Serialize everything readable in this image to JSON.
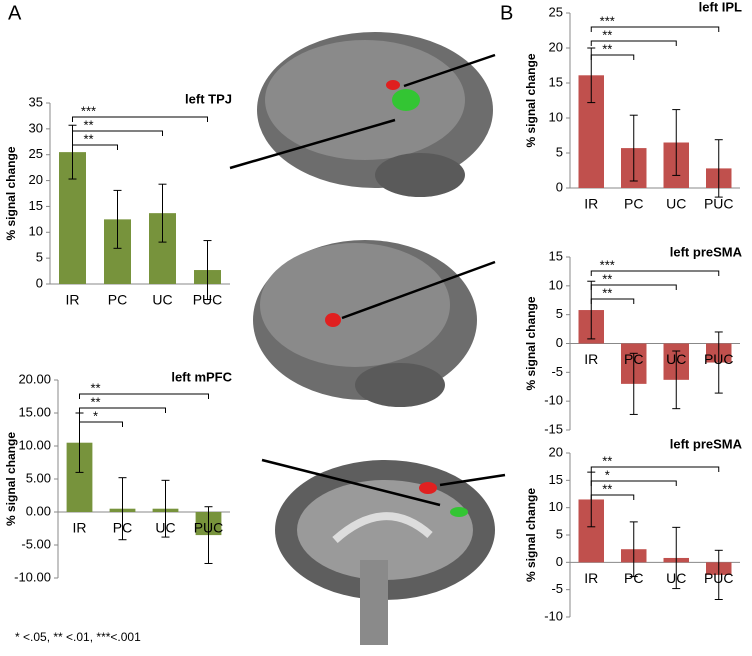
{
  "panel_labels": [
    "A",
    "B"
  ],
  "footnote": "* <.05, ** <.01, ***<.001",
  "chart_data": [
    {
      "type": "bar",
      "title": "left TPJ",
      "y_label": "% signal change",
      "color": "#77933c",
      "categories": [
        "IR",
        "PC",
        "UC",
        "PUC"
      ],
      "values": [
        25.5,
        12.5,
        13.7,
        2.7
      ],
      "errors": [
        5.2,
        5.6,
        5.6,
        5.7
      ],
      "ylim": [
        0,
        35
      ],
      "yticks": [
        0,
        5,
        10,
        15,
        20,
        25,
        30,
        35
      ],
      "significance": [
        {
          "label": "**",
          "categories": [
            "IR",
            "PC"
          ]
        },
        {
          "label": "**",
          "categories": [
            "IR",
            "UC"
          ]
        },
        {
          "label": "***",
          "categories": [
            "IR",
            "PUC"
          ]
        }
      ]
    },
    {
      "type": "bar",
      "title": "left mPFC",
      "y_label": "% signal change",
      "color": "#77933c",
      "categories": [
        "IR",
        "PC",
        "UC",
        "PUC"
      ],
      "values": [
        10.5,
        0.5,
        0.5,
        -3.5
      ],
      "errors": [
        4.5,
        4.7,
        4.3,
        4.3
      ],
      "ylim": [
        -10,
        20
      ],
      "yticks": [
        {
          "value": -10,
          "label": "-10.00"
        },
        {
          "value": -5,
          "label": "-5.00"
        },
        {
          "value": 0,
          "label": "0.00"
        },
        {
          "value": 5,
          "label": "5.00"
        },
        {
          "value": 10,
          "label": "10.00"
        },
        {
          "value": 15,
          "label": "15.00"
        },
        {
          "value": 20,
          "label": "20.00"
        }
      ],
      "significance": [
        {
          "label": "*",
          "categories": [
            "IR",
            "PC"
          ]
        },
        {
          "label": "**",
          "categories": [
            "IR",
            "UC"
          ]
        },
        {
          "label": "**",
          "categories": [
            "IR",
            "PUC"
          ]
        }
      ]
    },
    {
      "type": "bar",
      "title": "left IPL",
      "y_label": "% signal change",
      "color": "#c0504d",
      "categories": [
        "IR",
        "PC",
        "UC",
        "PUC"
      ],
      "values": [
        16.1,
        5.7,
        6.5,
        2.8
      ],
      "errors": [
        3.9,
        4.7,
        4.7,
        4.1
      ],
      "ylim": [
        0,
        25
      ],
      "yticks": [
        0,
        5,
        10,
        15,
        20,
        25
      ],
      "significance": [
        {
          "label": "**",
          "categories": [
            "IR",
            "PC"
          ]
        },
        {
          "label": "**",
          "categories": [
            "IR",
            "UC"
          ]
        },
        {
          "label": "***",
          "categories": [
            "IR",
            "PUC"
          ]
        }
      ]
    },
    {
      "type": "bar",
      "title": "left preSMA",
      "y_label": "% signal change",
      "color": "#c0504d",
      "categories": [
        "IR",
        "PC",
        "UC",
        "PUC"
      ],
      "values": [
        5.8,
        -7,
        -6.3,
        -3.3
      ],
      "errors": [
        5,
        5.3,
        5,
        5.3
      ],
      "ylim": [
        -15,
        15
      ],
      "yticks": [
        -15,
        -10,
        -5,
        0,
        5,
        10,
        15
      ],
      "significance": [
        {
          "label": "**",
          "categories": [
            "IR",
            "PC"
          ]
        },
        {
          "label": "**",
          "categories": [
            "IR",
            "UC"
          ]
        },
        {
          "label": "***",
          "categories": [
            "IR",
            "PUC"
          ]
        }
      ]
    },
    {
      "type": "bar",
      "title": "left preSMA",
      "y_label": "% signal change",
      "color": "#c0504d",
      "categories": [
        "IR",
        "PC",
        "UC",
        "PUC"
      ],
      "values": [
        11.5,
        2.4,
        0.8,
        -2.3
      ],
      "errors": [
        5,
        5,
        5.6,
        4.5
      ],
      "ylim": [
        -10,
        20
      ],
      "yticks": [
        -10,
        -5,
        0,
        5,
        10,
        15,
        20
      ],
      "significance": [
        {
          "label": "**",
          "categories": [
            "IR",
            "PC"
          ]
        },
        {
          "label": "*",
          "categories": [
            "IR",
            "UC"
          ]
        },
        {
          "label": "**",
          "categories": [
            "IR",
            "PUC"
          ]
        }
      ]
    }
  ]
}
